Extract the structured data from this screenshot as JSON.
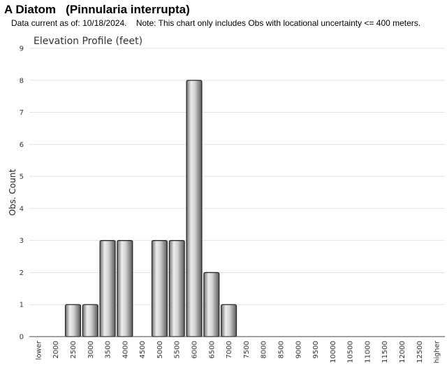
{
  "header": {
    "species": "A Diatom",
    "scientific_name": "(Pinnularia interrupta)",
    "date_label": "Data current as of:",
    "date_value": "10/18/2024.",
    "note": "Note: This chart only includes Obs with locational uncertainty <= 400 meters."
  },
  "chart_data": {
    "type": "bar",
    "title": "Elevation Profile (feet)",
    "xlabel": "",
    "ylabel": "Obs. Count",
    "ylim": [
      0,
      9
    ],
    "yticks": [
      0,
      1,
      2,
      3,
      4,
      5,
      6,
      7,
      8,
      9
    ],
    "grid": true,
    "bar_color": "#b0b0b0",
    "categories": [
      "lower",
      "2000",
      "2500",
      "3000",
      "3500",
      "4000",
      "4500",
      "5000",
      "5500",
      "6000",
      "6500",
      "7000",
      "7500",
      "8000",
      "8500",
      "9000",
      "9500",
      "10000",
      "10500",
      "11000",
      "11500",
      "12000",
      "12500",
      "higher"
    ],
    "values": [
      0,
      0,
      1,
      1,
      3,
      3,
      0,
      3,
      3,
      8,
      2,
      1,
      0,
      0,
      0,
      0,
      0,
      0,
      0,
      0,
      0,
      0,
      0,
      0
    ]
  }
}
